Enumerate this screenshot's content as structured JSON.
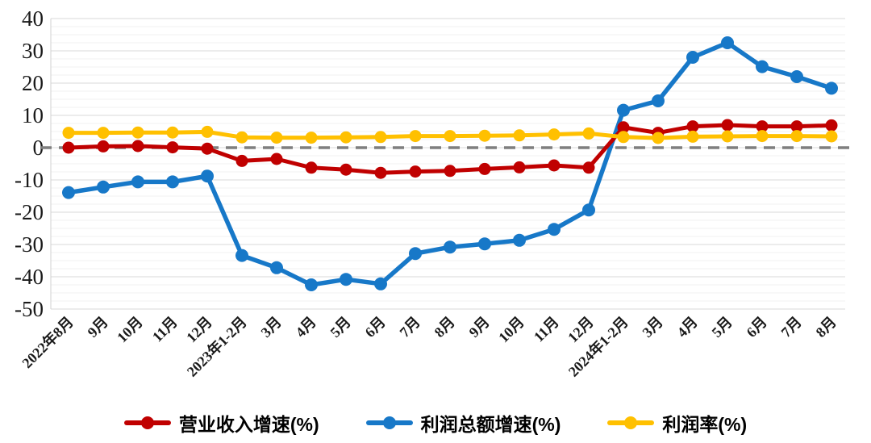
{
  "chart_data": {
    "type": "line",
    "title": "",
    "xlabel": "",
    "ylabel": "",
    "ylim": [
      -50,
      40
    ],
    "yticks": [
      40,
      30,
      20,
      10,
      0,
      -10,
      -20,
      -30,
      -40,
      -50
    ],
    "grid": true,
    "zero_line": {
      "style": "dashed",
      "color": "#7f7f7f"
    },
    "legend_position": "bottom",
    "categories": [
      "2022年8月",
      "9月",
      "10月",
      "11月",
      "12月",
      "2023年1-2月",
      "3月",
      "4月",
      "5月",
      "6月",
      "7月",
      "8月",
      "9月",
      "10月",
      "11月",
      "12月",
      "2024年1-2月",
      "3月",
      "4月",
      "5月",
      "6月",
      "7月",
      "8月"
    ],
    "series": [
      {
        "name": "营业收入增速(%)",
        "color": "#c00000",
        "values": [
          0.0,
          0.4,
          0.5,
          0.1,
          -0.3,
          -4.1,
          -3.5,
          -6.2,
          -6.8,
          -7.8,
          -7.4,
          -7.2,
          -6.6,
          -6.1,
          -5.5,
          -6.2,
          6.3,
          4.6,
          6.6,
          7.0,
          6.6,
          6.6,
          6.9
        ]
      },
      {
        "name": "利润总额增速(%)",
        "color": "#1778c8",
        "values": [
          -13.9,
          -12.2,
          -10.6,
          -10.6,
          -8.8,
          -33.4,
          -37.2,
          -42.5,
          -40.8,
          -42.2,
          -32.8,
          -30.8,
          -29.8,
          -28.7,
          -25.3,
          -19.3,
          11.6,
          14.5,
          28.0,
          32.5,
          25.1,
          22.0,
          18.4
        ]
      },
      {
        "name": "利润率(%)",
        "color": "#ffc000",
        "values": [
          4.6,
          4.6,
          4.7,
          4.7,
          4.9,
          3.2,
          3.1,
          3.1,
          3.2,
          3.3,
          3.6,
          3.6,
          3.7,
          3.8,
          4.1,
          4.4,
          3.3,
          3.0,
          3.4,
          3.5,
          3.6,
          3.6,
          3.5
        ]
      }
    ]
  }
}
